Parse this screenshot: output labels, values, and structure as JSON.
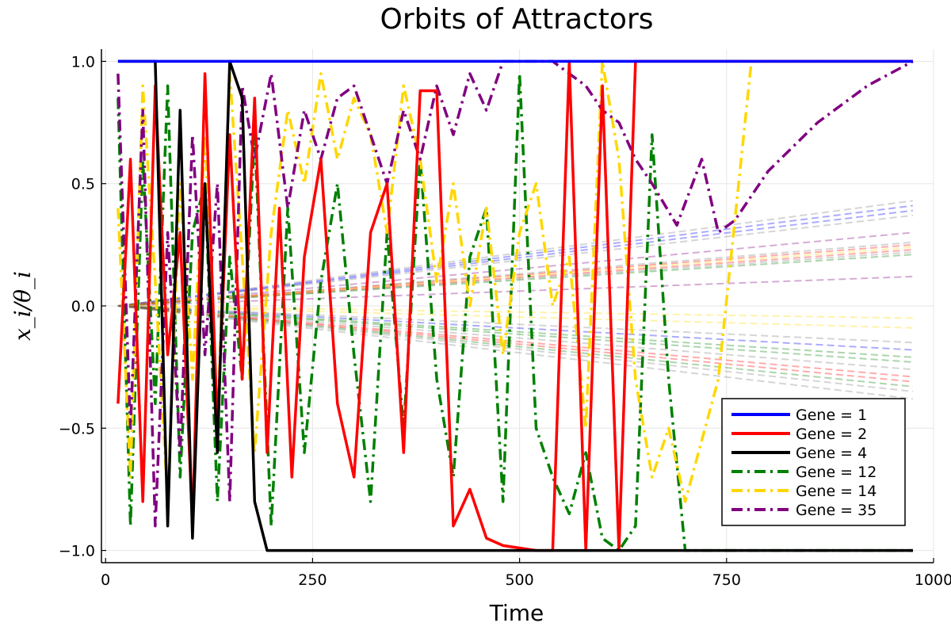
{
  "chart_data": {
    "type": "line",
    "title": "Orbits of Attractors",
    "xlabel": "Time",
    "ylabel": "x_i/θ_i",
    "xlim": [
      -5,
      1000
    ],
    "ylim": [
      -1.05,
      1.05
    ],
    "xticks": [
      0,
      250,
      500,
      750,
      1000
    ],
    "yticks": [
      -1.0,
      -0.5,
      0.0,
      0.5,
      1.0
    ],
    "xtick_labels": [
      "0",
      "250",
      "500",
      "750",
      "1000"
    ],
    "ytick_labels": [
      "−1.0",
      "−0.5",
      "0.0",
      "0.5",
      "1.0"
    ],
    "grid": true,
    "legend_position": "bottom-right",
    "series": [
      {
        "name": "Gene = 1",
        "color": "#0000ff",
        "style": "solid",
        "x": [
          15,
          25,
          35,
          50,
          65,
          80,
          95,
          110,
          125,
          140,
          155,
          170,
          185,
          200,
          215,
          230,
          250,
          270,
          290,
          310,
          330,
          350,
          370,
          390,
          410,
          430,
          450,
          470,
          490,
          510,
          525,
          540,
          560,
          580,
          600,
          650,
          700,
          800,
          975
        ],
        "values": [
          1.0,
          1.0,
          1.0,
          1.0,
          1.0,
          1.0,
          1.0,
          1.0,
          1.0,
          1.0,
          1.0,
          1.0,
          1.0,
          1.0,
          1.0,
          1.0,
          1.0,
          1.0,
          1.0,
          1.0,
          1.0,
          1.0,
          1.0,
          1.0,
          1.0,
          1.0,
          1.0,
          1.0,
          1.0,
          1.0,
          1.0,
          1.0,
          1.0,
          1.0,
          1.0,
          1.0,
          1.0,
          1.0,
          1.0
        ]
      },
      {
        "name": "Gene = 2",
        "color": "#ff0000",
        "style": "solid",
        "x": [
          15,
          30,
          45,
          60,
          75,
          90,
          105,
          120,
          135,
          150,
          165,
          180,
          195,
          210,
          225,
          240,
          260,
          280,
          300,
          320,
          340,
          360,
          380,
          400,
          420,
          440,
          460,
          480,
          500,
          520,
          540,
          560,
          580,
          600,
          620,
          640,
          700,
          800,
          975
        ],
        "values": [
          -0.4,
          0.6,
          -0.8,
          0.9,
          -0.2,
          0.3,
          -0.9,
          0.95,
          -0.5,
          0.7,
          -0.3,
          0.85,
          -0.6,
          0.4,
          -0.7,
          0.2,
          0.6,
          -0.4,
          -0.7,
          0.3,
          0.5,
          -0.6,
          0.88,
          0.88,
          -0.9,
          -0.75,
          -0.95,
          -0.98,
          -0.99,
          -1.0,
          -1.0,
          1.0,
          -1.0,
          0.9,
          -1.0,
          1.0,
          1.0,
          1.0,
          1.0
        ]
      },
      {
        "name": "Gene = 4",
        "color": "#000000",
        "style": "solid",
        "x": [
          15,
          30,
          45,
          60,
          75,
          90,
          105,
          120,
          135,
          150,
          165,
          180,
          195,
          210,
          225,
          240,
          260,
          280,
          300,
          320,
          340,
          360,
          380,
          400,
          420,
          440,
          460,
          480,
          500,
          520,
          540,
          560,
          580,
          600,
          700,
          800,
          975
        ],
        "values": [
          1.0,
          1.0,
          1.0,
          1.0,
          -0.9,
          0.8,
          -0.95,
          0.5,
          -0.6,
          1.0,
          0.85,
          -0.8,
          -1.0,
          -1.0,
          -1.0,
          -1.0,
          -1.0,
          -1.0,
          -1.0,
          -1.0,
          -1.0,
          -1.0,
          -1.0,
          -1.0,
          -1.0,
          -1.0,
          -1.0,
          -1.0,
          -1.0,
          -1.0,
          -1.0,
          -1.0,
          -1.0,
          -1.0,
          -1.0,
          -1.0,
          -1.0
        ]
      },
      {
        "name": "Gene = 12",
        "color": "#008000",
        "style": "dashdot",
        "x": [
          15,
          30,
          45,
          60,
          75,
          90,
          105,
          120,
          135,
          150,
          165,
          180,
          200,
          220,
          240,
          260,
          280,
          300,
          320,
          340,
          360,
          380,
          400,
          420,
          440,
          460,
          480,
          500,
          520,
          540,
          560,
          580,
          600,
          620,
          640,
          660,
          680,
          700,
          750,
          800,
          975
        ],
        "values": [
          0.85,
          -0.9,
          0.6,
          -0.4,
          0.9,
          -0.7,
          0.3,
          0.5,
          -0.8,
          0.2,
          -0.3,
          0.7,
          -0.9,
          0.4,
          -0.6,
          0.1,
          0.5,
          -0.2,
          -0.8,
          0.3,
          -0.5,
          0.6,
          -0.3,
          -0.7,
          0.2,
          0.4,
          -0.8,
          0.95,
          -0.5,
          -0.7,
          -0.85,
          -0.6,
          -0.95,
          -1.0,
          -0.9,
          0.7,
          -0.3,
          -1.0,
          -1.0,
          -1.0,
          -1.0
        ]
      },
      {
        "name": "Gene = 14",
        "color": "#ffd700",
        "style": "dashdot",
        "x": [
          15,
          30,
          45,
          60,
          75,
          90,
          105,
          120,
          135,
          150,
          165,
          180,
          200,
          220,
          240,
          260,
          280,
          300,
          320,
          340,
          360,
          380,
          400,
          420,
          440,
          460,
          480,
          500,
          520,
          540,
          560,
          580,
          600,
          620,
          640,
          660,
          680,
          700,
          740,
          780,
          975
        ],
        "values": [
          0.4,
          -0.7,
          0.9,
          0.1,
          -0.8,
          0.5,
          -0.3,
          0.7,
          -0.5,
          0.95,
          0.2,
          -0.6,
          0.3,
          0.8,
          0.5,
          0.95,
          0.6,
          0.85,
          0.7,
          0.3,
          0.9,
          0.6,
          0.1,
          0.5,
          0.0,
          0.4,
          -0.2,
          0.3,
          0.5,
          0.0,
          0.2,
          -0.5,
          1.0,
          0.6,
          -0.3,
          -0.7,
          -0.5,
          -0.8,
          -0.3,
          1.0,
          1.0
        ]
      },
      {
        "name": "Gene = 35",
        "color": "#800080",
        "style": "dashdot",
        "x": [
          15,
          30,
          45,
          60,
          75,
          90,
          105,
          120,
          135,
          150,
          165,
          180,
          200,
          220,
          240,
          260,
          280,
          300,
          320,
          340,
          360,
          380,
          400,
          420,
          440,
          460,
          480,
          500,
          520,
          540,
          560,
          580,
          600,
          620,
          640,
          660,
          690,
          720,
          740,
          760,
          800,
          860,
          920,
          975
        ],
        "values": [
          0.95,
          -0.5,
          0.8,
          -0.9,
          0.3,
          -0.6,
          0.7,
          -0.2,
          0.5,
          -0.8,
          0.9,
          0.6,
          0.95,
          0.4,
          0.8,
          0.6,
          0.85,
          0.9,
          0.7,
          0.5,
          0.8,
          0.6,
          0.9,
          0.7,
          0.95,
          0.8,
          1.0,
          1.0,
          1.0,
          1.0,
          0.95,
          0.9,
          0.8,
          0.75,
          0.6,
          0.5,
          0.33,
          0.6,
          0.3,
          0.35,
          0.55,
          0.75,
          0.9,
          1.0
        ]
      }
    ],
    "faint_series": [
      {
        "color": "#0000ff",
        "start": 0.0,
        "end": 0.41
      },
      {
        "color": "#0000ff",
        "start": 0.0,
        "end": 0.39
      },
      {
        "color": "#808080",
        "start": 0.0,
        "end": 0.43
      },
      {
        "color": "#808080",
        "start": 0.0,
        "end": 0.37
      },
      {
        "color": "#808080",
        "start": 0.0,
        "end": 0.26
      },
      {
        "color": "#808080",
        "start": 0.0,
        "end": 0.22
      },
      {
        "color": "#800080",
        "start": 0.0,
        "end": 0.3
      },
      {
        "color": "#800080",
        "start": 0.0,
        "end": 0.12
      },
      {
        "color": "#ff0000",
        "start": 0.0,
        "end": 0.25
      },
      {
        "color": "#ff0000",
        "start": 0.0,
        "end": 0.23
      },
      {
        "color": "#008000",
        "start": 0.0,
        "end": 0.21
      },
      {
        "color": "#ffd700",
        "start": 0.0,
        "end": 0.24
      },
      {
        "color": "#ffd700",
        "start": 0.0,
        "end": -0.05
      },
      {
        "color": "#ffd700",
        "start": 0.0,
        "end": -0.09
      },
      {
        "color": "#808080",
        "start": 0.0,
        "end": -0.15
      },
      {
        "color": "#0000ff",
        "start": 0.0,
        "end": -0.18
      },
      {
        "color": "#008000",
        "start": 0.0,
        "end": -0.21
      },
      {
        "color": "#008000",
        "start": 0.0,
        "end": -0.23
      },
      {
        "color": "#808080",
        "start": 0.0,
        "end": -0.26
      },
      {
        "color": "#ff0000",
        "start": 0.0,
        "end": -0.29
      },
      {
        "color": "#ff0000",
        "start": 0.0,
        "end": -0.31
      },
      {
        "color": "#008000",
        "start": 0.0,
        "end": -0.33
      },
      {
        "color": "#808080",
        "start": 0.0,
        "end": -0.35
      },
      {
        "color": "#808080",
        "start": 0.0,
        "end": -0.38
      }
    ]
  }
}
